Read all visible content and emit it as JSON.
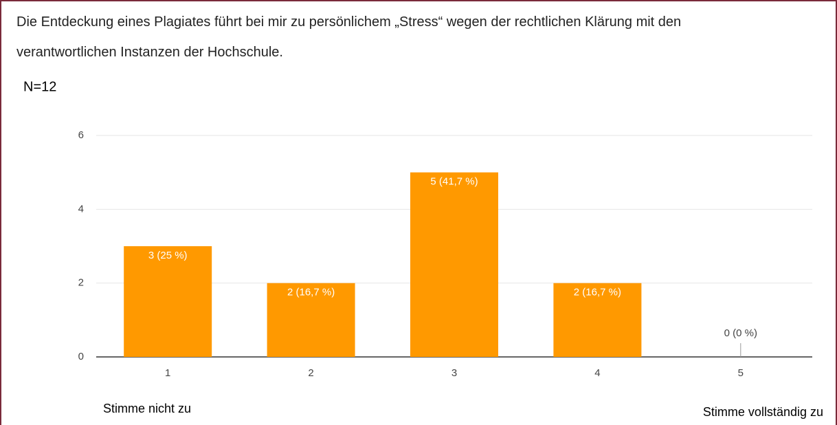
{
  "chart_data": {
    "type": "bar",
    "title": "Die Entdeckung eines Plagiates führt bei mir zu persönlichem „Stress“ wegen der rechtlichen Klärung mit den verantwortlichen Instanzen der Hochschule.",
    "annotations": [
      "N=12",
      "Stimme nicht zu",
      "Stimme vollständig zu"
    ],
    "categories": [
      "1",
      "2",
      "3",
      "4",
      "5"
    ],
    "values": [
      3,
      2,
      5,
      2,
      0
    ],
    "value_labels": [
      "3 (25 %)",
      "2 (16,7 %)",
      "5 (41,7 %)",
      "2 (16,7 %)",
      "0 (0 %)"
    ],
    "color": "#ff9900",
    "ylim": [
      0,
      6
    ],
    "yticks": [
      0,
      2,
      4,
      6
    ],
    "grid": true
  }
}
